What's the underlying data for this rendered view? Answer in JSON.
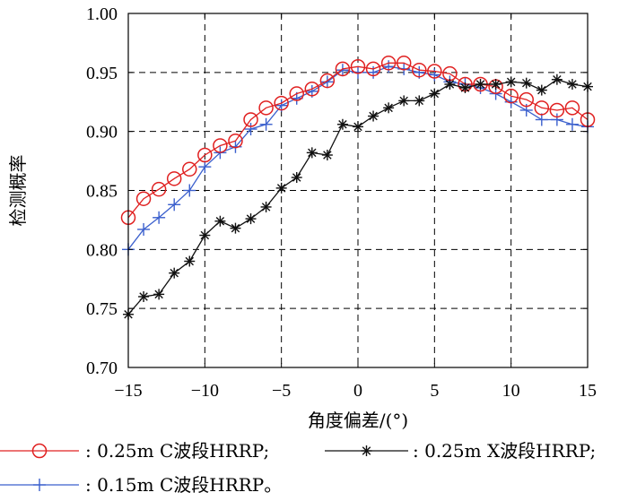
{
  "chart_data": {
    "type": "line",
    "xlabel": "角度偏差/(°)",
    "ylabel": "检测概率",
    "xlim": [
      -15,
      15
    ],
    "ylim": [
      0.7,
      1.0
    ],
    "xticks": [
      -15,
      -10,
      -5,
      0,
      5,
      10,
      15
    ],
    "yticks": [
      "0.70",
      "0.75",
      "0.80",
      "0.85",
      "0.90",
      "0.95",
      "1.00"
    ],
    "grid": true,
    "x": [
      -15,
      -14,
      -13,
      -12,
      -11,
      -10,
      -9,
      -8,
      -7,
      -6,
      -5,
      -4,
      -3,
      -2,
      -1,
      0,
      1,
      2,
      3,
      4,
      5,
      6,
      7,
      8,
      9,
      10,
      11,
      12,
      13,
      14,
      15
    ],
    "series": [
      {
        "name": ": 0.25m C波段HRRP;",
        "color": "#e02020",
        "marker": "circle",
        "values": [
          0.827,
          0.843,
          0.851,
          0.86,
          0.868,
          0.88,
          0.888,
          0.892,
          0.91,
          0.92,
          0.924,
          0.932,
          0.936,
          0.943,
          0.953,
          0.955,
          0.953,
          0.958,
          0.958,
          0.952,
          0.951,
          0.949,
          0.94,
          0.94,
          0.938,
          0.93,
          0.927,
          0.92,
          0.918,
          0.92,
          0.91
        ]
      },
      {
        "name": ": 0.25m X波段HRRP;",
        "color": "#111111",
        "marker": "star",
        "values": [
          0.745,
          0.76,
          0.762,
          0.78,
          0.79,
          0.812,
          0.824,
          0.818,
          0.826,
          0.836,
          0.852,
          0.861,
          0.882,
          0.88,
          0.906,
          0.904,
          0.913,
          0.92,
          0.926,
          0.926,
          0.932,
          0.94,
          0.937,
          0.94,
          0.94,
          0.942,
          0.941,
          0.935,
          0.944,
          0.94,
          0.938
        ]
      },
      {
        "name": ": 0.15m C波段HRRP。",
        "color": "#3a5fcd",
        "marker": "plus",
        "values": [
          0.8,
          0.817,
          0.827,
          0.838,
          0.85,
          0.87,
          0.882,
          0.887,
          0.902,
          0.906,
          0.922,
          0.928,
          0.934,
          0.942,
          0.952,
          0.95,
          0.95,
          0.955,
          0.953,
          0.95,
          0.948,
          0.942,
          0.94,
          0.937,
          0.932,
          0.925,
          0.918,
          0.91,
          0.91,
          0.906,
          0.904
        ]
      }
    ]
  }
}
